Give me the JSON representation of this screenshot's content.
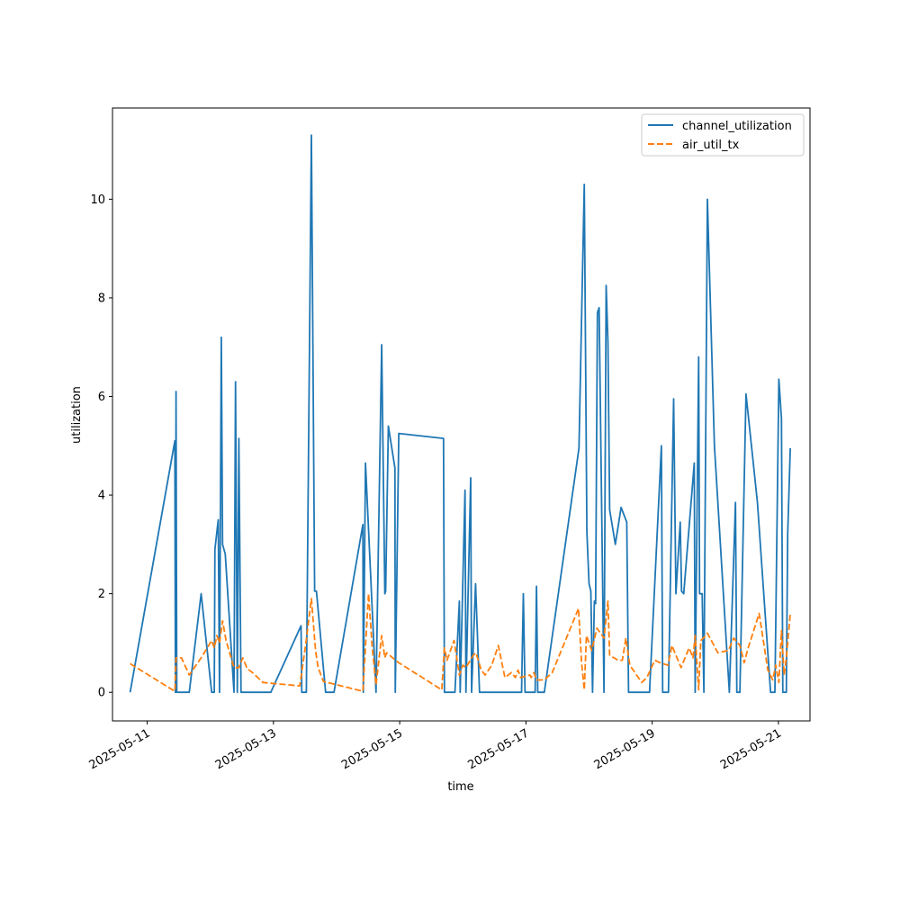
{
  "chart_data": {
    "type": "line",
    "title": "",
    "xlabel": "time",
    "ylabel": "utilization",
    "x_ticks": [
      "2025-05-11",
      "2025-05-13",
      "2025-05-15",
      "2025-05-17",
      "2025-05-19",
      "2025-05-21"
    ],
    "y_ticks": [
      0,
      2,
      4,
      6,
      8,
      10
    ],
    "xlim": [
      "2025-05-10T10:48",
      "2025-05-21T12:00"
    ],
    "ylim": [
      -0.58,
      11.85
    ],
    "grid": false,
    "legend_position": "top-right",
    "series": [
      {
        "name": "channel_utilization",
        "color": "#1f77b4",
        "dash": "solid",
        "points": [
          [
            "2025-05-10T17:30",
            0
          ],
          [
            "2025-05-11T10:30",
            5.1
          ],
          [
            "2025-05-11T10:43",
            0
          ],
          [
            "2025-05-11T10:58",
            6.1
          ],
          [
            "2025-05-11T11:14",
            0
          ],
          [
            "2025-05-11T16:00",
            0
          ],
          [
            "2025-05-11T20:30",
            2.0
          ],
          [
            "2025-05-12T00:30",
            0
          ],
          [
            "2025-05-12T01:30",
            0
          ],
          [
            "2025-05-12T01:45",
            2.9
          ],
          [
            "2025-05-12T03:00",
            3.5
          ],
          [
            "2025-05-12T03:30",
            0
          ],
          [
            "2025-05-12T04:10",
            7.2
          ],
          [
            "2025-05-12T04:40",
            3.0
          ],
          [
            "2025-05-12T05:40",
            2.8
          ],
          [
            "2025-05-12T09:00",
            0
          ],
          [
            "2025-05-12T09:35",
            6.3
          ],
          [
            "2025-05-12T10:15",
            0
          ],
          [
            "2025-05-12T10:50",
            5.15
          ],
          [
            "2025-05-12T11:40",
            0
          ],
          [
            "2025-05-12T23:00",
            0
          ],
          [
            "2025-05-13T10:30",
            1.35
          ],
          [
            "2025-05-13T10:45",
            0
          ],
          [
            "2025-05-13T12:30",
            0
          ],
          [
            "2025-05-13T14:25",
            11.3
          ],
          [
            "2025-05-13T15:40",
            2.05
          ],
          [
            "2025-05-13T16:20",
            2.05
          ],
          [
            "2025-05-13T19:50",
            0
          ],
          [
            "2025-05-13T23:00",
            0
          ],
          [
            "2025-05-14T10:00",
            3.4
          ],
          [
            "2025-05-14T10:10",
            0
          ],
          [
            "2025-05-14T11:00",
            4.65
          ],
          [
            "2025-05-14T15:00",
            0
          ],
          [
            "2025-05-14T17:10",
            7.05
          ],
          [
            "2025-05-14T18:20",
            2.0
          ],
          [
            "2025-05-14T18:40",
            2.05
          ],
          [
            "2025-05-14T19:40",
            5.4
          ],
          [
            "2025-05-14T22:10",
            4.55
          ],
          [
            "2025-05-14T22:20",
            0
          ],
          [
            "2025-05-14T23:40",
            5.25
          ],
          [
            "2025-05-15T16:40",
            5.15
          ],
          [
            "2025-05-15T17:00",
            0
          ],
          [
            "2025-05-15T21:00",
            0
          ],
          [
            "2025-05-15T22:40",
            1.85
          ],
          [
            "2025-05-15T23:00",
            0
          ],
          [
            "2025-05-16T00:50",
            4.1
          ],
          [
            "2025-05-16T01:10",
            0
          ],
          [
            "2025-05-16T03:00",
            4.35
          ],
          [
            "2025-05-16T03:20",
            0
          ],
          [
            "2025-05-16T04:50",
            2.2
          ],
          [
            "2025-05-16T06:20",
            0
          ],
          [
            "2025-05-16T22:20",
            0
          ],
          [
            "2025-05-16T23:00",
            2.0
          ],
          [
            "2025-05-16T23:40",
            0
          ],
          [
            "2025-05-17T03:30",
            0
          ],
          [
            "2025-05-17T04:00",
            2.15
          ],
          [
            "2025-05-17T04:30",
            0
          ],
          [
            "2025-05-17T07:00",
            0
          ],
          [
            "2025-05-17T20:10",
            4.95
          ],
          [
            "2025-05-17T22:10",
            10.3
          ],
          [
            "2025-05-17T23:10",
            3.25
          ],
          [
            "2025-05-18T00:00",
            2.2
          ],
          [
            "2025-05-18T00:40",
            2.05
          ],
          [
            "2025-05-18T01:20",
            0
          ],
          [
            "2025-05-18T02:00",
            1.85
          ],
          [
            "2025-05-18T02:30",
            1.8
          ],
          [
            "2025-05-18T03:10",
            7.7
          ],
          [
            "2025-05-18T03:50",
            7.8
          ],
          [
            "2025-05-18T05:40",
            0
          ],
          [
            "2025-05-18T06:30",
            8.25
          ],
          [
            "2025-05-18T07:10",
            7.1
          ],
          [
            "2025-05-18T07:50",
            3.7
          ],
          [
            "2025-05-18T10:00",
            3.0
          ],
          [
            "2025-05-18T12:10",
            3.75
          ],
          [
            "2025-05-18T14:20",
            3.45
          ],
          [
            "2025-05-18T15:00",
            0
          ],
          [
            "2025-05-18T23:00",
            0
          ],
          [
            "2025-05-19T03:30",
            5.0
          ],
          [
            "2025-05-19T04:00",
            0
          ],
          [
            "2025-05-19T06:10",
            0
          ],
          [
            "2025-05-19T08:10",
            5.95
          ],
          [
            "2025-05-19T09:00",
            2.0
          ],
          [
            "2025-05-19T10:40",
            3.45
          ],
          [
            "2025-05-19T11:10",
            2.05
          ],
          [
            "2025-05-19T12:00",
            2.0
          ],
          [
            "2025-05-19T16:00",
            4.65
          ],
          [
            "2025-05-19T16:20",
            0
          ],
          [
            "2025-05-19T17:40",
            6.8
          ],
          [
            "2025-05-19T18:00",
            2.0
          ],
          [
            "2025-05-19T19:00",
            2.0
          ],
          [
            "2025-05-19T19:40",
            0
          ],
          [
            "2025-05-19T21:00",
            10.0
          ],
          [
            "2025-05-19T23:40",
            5.0
          ],
          [
            "2025-05-20T05:20",
            0
          ],
          [
            "2025-05-20T07:40",
            3.85
          ],
          [
            "2025-05-20T08:10",
            0
          ],
          [
            "2025-05-20T09:20",
            0
          ],
          [
            "2025-05-20T11:40",
            6.05
          ],
          [
            "2025-05-20T16:00",
            3.85
          ],
          [
            "2025-05-20T21:00",
            0
          ],
          [
            "2025-05-20T21:50",
            0
          ],
          [
            "2025-05-20T22:40",
            0
          ],
          [
            "2025-05-21T00:10",
            6.35
          ],
          [
            "2025-05-21T01:10",
            5.55
          ],
          [
            "2025-05-21T01:40",
            0
          ],
          [
            "2025-05-21T02:10",
            0
          ],
          [
            "2025-05-21T03:00",
            0
          ],
          [
            "2025-05-21T03:30",
            3.2
          ],
          [
            "2025-05-21T04:30",
            4.95
          ]
        ]
      },
      {
        "name": "air_util_tx",
        "color": "#ff7f0e",
        "dash": "dashed",
        "points": [
          [
            "2025-05-10T17:30",
            0.58
          ],
          [
            "2025-05-11T10:30",
            0.02
          ],
          [
            "2025-05-11T10:58",
            0.7
          ],
          [
            "2025-05-11T13:00",
            0.7
          ],
          [
            "2025-05-11T16:00",
            0.35
          ],
          [
            "2025-05-11T20:30",
            0.7
          ],
          [
            "2025-05-12T00:30",
            1.05
          ],
          [
            "2025-05-12T01:30",
            0.9
          ],
          [
            "2025-05-12T02:30",
            1.15
          ],
          [
            "2025-05-12T03:30",
            1.0
          ],
          [
            "2025-05-12T04:40",
            1.45
          ],
          [
            "2025-05-12T06:00",
            1.05
          ],
          [
            "2025-05-12T09:00",
            0.5
          ],
          [
            "2025-05-12T10:50",
            0.5
          ],
          [
            "2025-05-12T12:20",
            0.7
          ],
          [
            "2025-05-12T14:00",
            0.48
          ],
          [
            "2025-05-12T16:00",
            0.4
          ],
          [
            "2025-05-12T20:00",
            0.2
          ],
          [
            "2025-05-13T10:00",
            0.13
          ],
          [
            "2025-05-13T12:20",
            1.0
          ],
          [
            "2025-05-13T14:25",
            1.9
          ],
          [
            "2025-05-13T16:00",
            0.85
          ],
          [
            "2025-05-13T17:00",
            0.5
          ],
          [
            "2025-05-13T19:00",
            0.22
          ],
          [
            "2025-05-14T10:00",
            0.02
          ],
          [
            "2025-05-14T12:10",
            2.0
          ],
          [
            "2025-05-14T13:30",
            0.95
          ],
          [
            "2025-05-14T15:00",
            0.15
          ],
          [
            "2025-05-14T17:10",
            1.15
          ],
          [
            "2025-05-14T18:20",
            0.7
          ],
          [
            "2025-05-14T19:00",
            0.8
          ],
          [
            "2025-05-14T23:40",
            0.6
          ],
          [
            "2025-05-15T16:00",
            0.05
          ],
          [
            "2025-05-15T17:00",
            0.9
          ],
          [
            "2025-05-15T18:00",
            0.65
          ],
          [
            "2025-05-15T20:40",
            1.05
          ],
          [
            "2025-05-15T22:40",
            0.35
          ],
          [
            "2025-05-16T00:00",
            0.55
          ],
          [
            "2025-05-16T01:10",
            0.5
          ],
          [
            "2025-05-16T04:00",
            0.75
          ],
          [
            "2025-05-16T05:00",
            0.8
          ],
          [
            "2025-05-16T07:00",
            0.45
          ],
          [
            "2025-05-16T08:30",
            0.35
          ],
          [
            "2025-05-16T11:00",
            0.55
          ],
          [
            "2025-05-16T13:30",
            0.95
          ],
          [
            "2025-05-16T16:00",
            0.3
          ],
          [
            "2025-05-16T18:30",
            0.4
          ],
          [
            "2025-05-16T20:00",
            0.3
          ],
          [
            "2025-05-16T21:00",
            0.45
          ],
          [
            "2025-05-16T22:00",
            0.3
          ],
          [
            "2025-05-17T01:30",
            0.35
          ],
          [
            "2025-05-17T02:00",
            0.3
          ],
          [
            "2025-05-17T03:00",
            0.4
          ],
          [
            "2025-05-17T04:00",
            0.25
          ],
          [
            "2025-05-17T07:00",
            0.25
          ],
          [
            "2025-05-17T10:00",
            0.4
          ],
          [
            "2025-05-17T20:00",
            1.7
          ],
          [
            "2025-05-17T21:10",
            0.6
          ],
          [
            "2025-05-17T22:10",
            0.05
          ],
          [
            "2025-05-17T23:00",
            1.15
          ],
          [
            "2025-05-18T01:00",
            0.85
          ],
          [
            "2025-05-18T03:00",
            1.3
          ],
          [
            "2025-05-18T05:40",
            1.1
          ],
          [
            "2025-05-18T07:10",
            1.85
          ],
          [
            "2025-05-18T07:50",
            0.75
          ],
          [
            "2025-05-18T11:00",
            0.65
          ],
          [
            "2025-05-18T12:40",
            0.65
          ],
          [
            "2025-05-18T14:00",
            1.1
          ],
          [
            "2025-05-18T15:30",
            0.55
          ],
          [
            "2025-05-18T20:00",
            0.2
          ],
          [
            "2025-05-18T22:00",
            0.3
          ],
          [
            "2025-05-19T01:00",
            0.65
          ],
          [
            "2025-05-19T03:00",
            0.6
          ],
          [
            "2025-05-19T06:00",
            0.55
          ],
          [
            "2025-05-19T07:30",
            0.95
          ],
          [
            "2025-05-19T09:00",
            0.75
          ],
          [
            "2025-05-19T11:00",
            0.5
          ],
          [
            "2025-05-19T14:00",
            0.9
          ],
          [
            "2025-05-19T15:30",
            0.7
          ],
          [
            "2025-05-19T16:20",
            1.15
          ],
          [
            "2025-05-19T17:40",
            0.05
          ],
          [
            "2025-05-19T18:30",
            1.05
          ],
          [
            "2025-05-19T19:30",
            1.1
          ],
          [
            "2025-05-19T21:00",
            1.2
          ],
          [
            "2025-05-20T01:00",
            0.8
          ],
          [
            "2025-05-20T05:00",
            0.85
          ],
          [
            "2025-05-20T07:00",
            1.1
          ],
          [
            "2025-05-20T09:20",
            0.95
          ],
          [
            "2025-05-20T11:00",
            0.6
          ],
          [
            "2025-05-20T12:30",
            0.9
          ],
          [
            "2025-05-20T16:40",
            1.6
          ],
          [
            "2025-05-20T20:00",
            0.45
          ],
          [
            "2025-05-20T21:50",
            0.25
          ],
          [
            "2025-05-20T23:00",
            0.55
          ],
          [
            "2025-05-21T00:10",
            0.2
          ],
          [
            "2025-05-21T01:10",
            1.25
          ],
          [
            "2025-05-21T02:10",
            0.35
          ],
          [
            "2025-05-21T03:00",
            0.7
          ],
          [
            "2025-05-21T03:30",
            1.0
          ],
          [
            "2025-05-21T04:30",
            1.6
          ]
        ]
      }
    ]
  }
}
